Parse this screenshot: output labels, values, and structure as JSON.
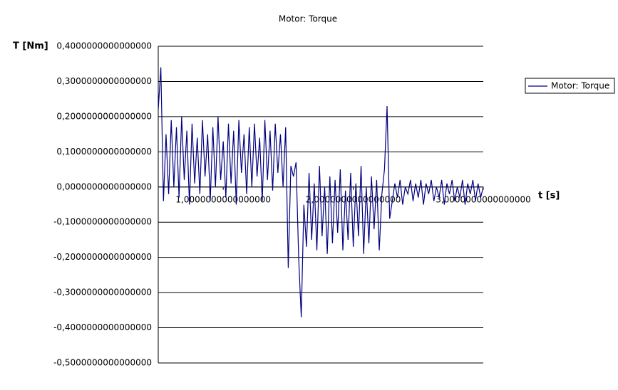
{
  "chart_data": {
    "type": "line",
    "title": "Motor: Torque",
    "y_label": "T [Nm]",
    "x_label": "t [s]",
    "x": [
      0.5,
      0.52,
      0.54,
      0.56,
      0.58,
      0.6,
      0.62,
      0.64,
      0.66,
      0.68,
      0.7,
      0.72,
      0.74,
      0.76,
      0.78,
      0.8,
      0.82,
      0.84,
      0.86,
      0.88,
      0.9,
      0.92,
      0.94,
      0.96,
      0.98,
      1.0,
      1.02,
      1.04,
      1.06,
      1.08,
      1.1,
      1.12,
      1.14,
      1.16,
      1.18,
      1.2,
      1.22,
      1.24,
      1.26,
      1.28,
      1.3,
      1.32,
      1.34,
      1.36,
      1.38,
      1.4,
      1.42,
      1.44,
      1.46,
      1.48,
      1.5,
      1.52,
      1.54,
      1.56,
      1.58,
      1.6,
      1.62,
      1.64,
      1.66,
      1.68,
      1.7,
      1.72,
      1.74,
      1.76,
      1.78,
      1.8,
      1.82,
      1.84,
      1.86,
      1.88,
      1.9,
      1.92,
      1.94,
      1.96,
      1.98,
      2.0,
      2.02,
      2.04,
      2.06,
      2.08,
      2.1,
      2.12,
      2.14,
      2.16,
      2.18,
      2.2,
      2.22,
      2.24,
      2.26,
      2.28,
      2.3,
      2.32,
      2.34,
      2.36,
      2.38,
      2.4,
      2.42,
      2.44,
      2.46,
      2.48,
      2.5,
      2.52,
      2.54,
      2.56,
      2.58,
      2.6,
      2.62,
      2.64,
      2.66,
      2.68,
      2.7,
      2.72,
      2.74,
      2.76,
      2.78,
      2.8,
      2.82,
      2.84,
      2.86,
      2.88,
      2.9,
      2.92,
      2.94,
      2.96,
      2.98,
      3.0
    ],
    "series": [
      {
        "name": "Motor: Torque",
        "color": "#000080",
        "values": [
          0.22,
          0.34,
          -0.04,
          0.15,
          -0.02,
          0.19,
          0.0,
          0.17,
          -0.03,
          0.2,
          0.02,
          0.16,
          -0.05,
          0.18,
          0.01,
          0.14,
          -0.02,
          0.19,
          0.03,
          0.15,
          -0.04,
          0.17,
          0.0,
          0.2,
          0.02,
          0.13,
          -0.03,
          0.18,
          0.01,
          0.16,
          -0.05,
          0.19,
          0.04,
          0.15,
          -0.02,
          0.17,
          0.0,
          0.18,
          0.03,
          0.14,
          -0.04,
          0.19,
          0.02,
          0.16,
          -0.01,
          0.18,
          0.04,
          0.15,
          0.0,
          0.17,
          -0.23,
          0.06,
          0.03,
          0.07,
          -0.2,
          -0.37,
          -0.05,
          -0.17,
          0.04,
          -0.15,
          0.01,
          -0.18,
          0.06,
          -0.14,
          0.0,
          -0.19,
          0.03,
          -0.16,
          0.02,
          -0.13,
          0.05,
          -0.18,
          -0.01,
          -0.15,
          0.04,
          -0.17,
          0.01,
          -0.14,
          0.06,
          -0.19,
          0.0,
          -0.16,
          0.03,
          -0.12,
          0.02,
          -0.18,
          -0.02,
          0.05,
          0.23,
          -0.09,
          -0.04,
          0.01,
          -0.03,
          0.02,
          -0.05,
          0.0,
          -0.02,
          0.02,
          -0.04,
          0.01,
          -0.03,
          0.02,
          -0.05,
          0.01,
          -0.02,
          0.02,
          -0.04,
          0.0,
          -0.03,
          0.02,
          -0.05,
          0.01,
          -0.02,
          0.02,
          -0.04,
          0.0,
          -0.03,
          0.02,
          -0.05,
          0.01,
          -0.02,
          0.02,
          -0.04,
          0.01,
          -0.03,
          0.0
        ]
      }
    ],
    "xlim": [
      0.5,
      3.0
    ],
    "xticks": [
      {
        "value": 1,
        "label": "1,0000000000000000"
      },
      {
        "value": 2,
        "label": "2,0000000000000000"
      },
      {
        "value": 3,
        "label": "3,0000000000000000"
      }
    ],
    "ylim": [
      -0.5,
      0.4
    ],
    "yticks": [
      {
        "value": 0.4,
        "label": "0,4000000000000000"
      },
      {
        "value": 0.3,
        "label": "0,3000000000000000"
      },
      {
        "value": 0.2,
        "label": "0,2000000000000000"
      },
      {
        "value": 0.1,
        "label": "0,1000000000000000"
      },
      {
        "value": 0,
        "label": "0,0000000000000000"
      },
      {
        "value": -0.1,
        "label": "-0,1000000000000000"
      },
      {
        "value": -0.2,
        "label": "-0,2000000000000000"
      },
      {
        "value": -0.3,
        "label": "-0,3000000000000000"
      },
      {
        "value": -0.4,
        "label": "-0,4000000000000000"
      },
      {
        "value": -0.5,
        "label": "-0,5000000000000000"
      }
    ],
    "grid": true,
    "legend": "right"
  }
}
